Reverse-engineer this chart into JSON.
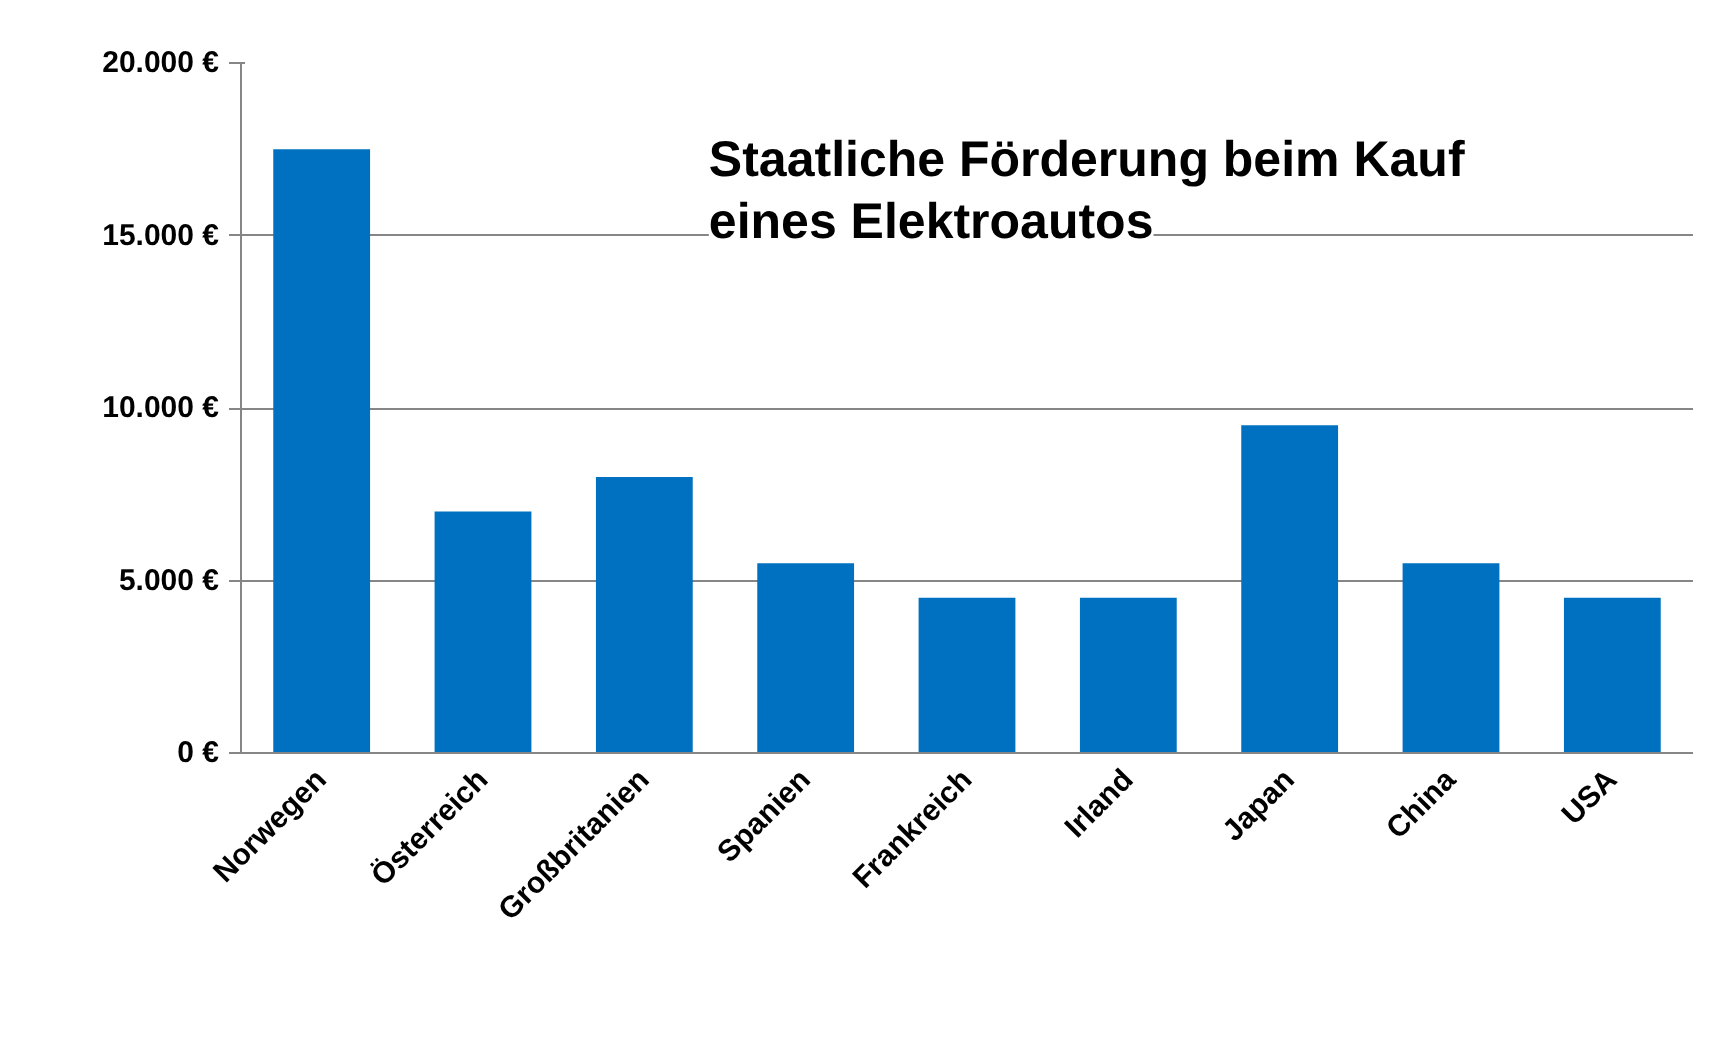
{
  "chart_data": {
    "type": "bar",
    "title": "Staatliche Förderung beim Kauf eines Elektroautos",
    "categories": [
      "Norwegen",
      "Österreich",
      "Großbritanien",
      "Spanien",
      "Frankreich",
      "Irland",
      "Japan",
      "China",
      "USA"
    ],
    "values": [
      17500,
      7000,
      8000,
      5500,
      4500,
      4500,
      9500,
      5500,
      4500
    ],
    "color": "#0070c0",
    "ylim": [
      0,
      20000
    ],
    "yticks": [
      {
        "value": 0,
        "label": "0 €"
      },
      {
        "value": 5000,
        "label": "5.000 €"
      },
      {
        "value": 10000,
        "label": "10.000 €"
      },
      {
        "value": 15000,
        "label": "15.000 €"
      },
      {
        "value": 20000,
        "label": "20.000 €"
      }
    ],
    "grid": "y"
  }
}
